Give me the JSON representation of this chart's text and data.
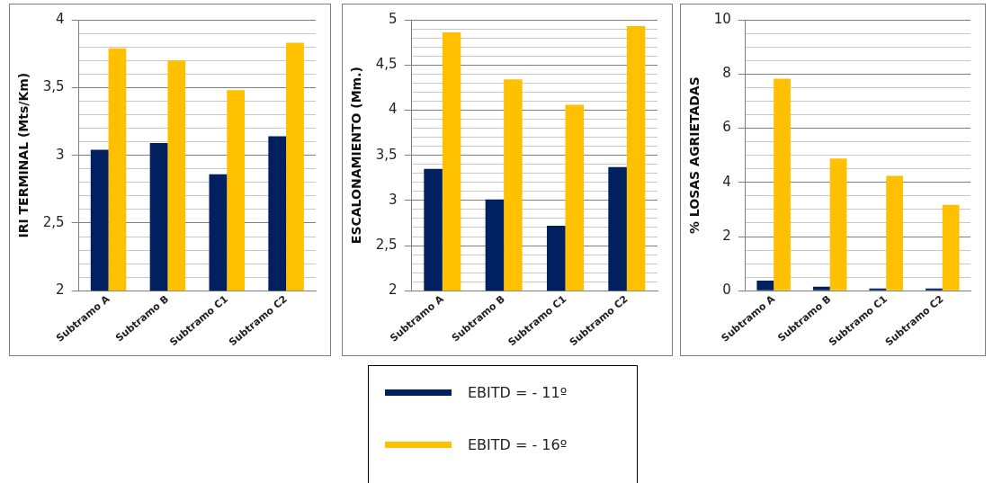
{
  "chart_data": [
    {
      "type": "bar",
      "ylabel": "IRI TERMINAL (Mts/Km)",
      "categories": [
        "Subtramo A",
        "Subtramo B",
        "Subtramo C1",
        "Subtramo C2"
      ],
      "series": [
        {
          "name": "EBITD = - 11º",
          "color": "#002060",
          "values": [
            3.04,
            3.09,
            2.86,
            3.14
          ]
        },
        {
          "name": "EBITD = - 16º",
          "color": "#ffc000",
          "values": [
            3.79,
            3.7,
            3.48,
            3.83
          ]
        }
      ],
      "ylim": [
        2,
        4
      ],
      "yticks": [
        2,
        {
          "value": 2.1,
          "label": null
        },
        {
          "value": 2.2,
          "label": null
        },
        {
          "value": 2.3,
          "label": null
        },
        {
          "value": 2.4,
          "label": null
        },
        {
          "value": 2.5,
          "label": "2,5"
        },
        {
          "value": 2.6,
          "label": null
        },
        {
          "value": 2.7,
          "label": null
        },
        {
          "value": 2.8,
          "label": null
        },
        {
          "value": 2.9,
          "label": null
        },
        3,
        {
          "value": 3.1,
          "label": null
        },
        {
          "value": 3.2,
          "label": null
        },
        {
          "value": 3.3,
          "label": null
        },
        {
          "value": 3.4,
          "label": null
        },
        {
          "value": 3.5,
          "label": "3,5"
        },
        {
          "value": 3.6,
          "label": null
        },
        {
          "value": 3.7,
          "label": null
        },
        {
          "value": 3.8,
          "label": null
        },
        {
          "value": 3.9,
          "label": null
        },
        4
      ],
      "grid": "y",
      "legend": "bottom"
    },
    {
      "type": "bar",
      "ylabel": "ESCALONAMIENTO (Mm.)",
      "categories": [
        "Subtramo A",
        "Subtramo B",
        "Subtramo C1",
        "Subtramo C2"
      ],
      "series": [
        {
          "color": "#002060",
          "values": [
            3.35,
            3.01,
            2.72,
            3.37
          ]
        },
        {
          "color": "#ffc000",
          "values": [
            4.86,
            4.34,
            4.06,
            4.93
          ]
        }
      ],
      "ylim": [
        2,
        5
      ],
      "yticks": [
        2,
        {
          "value": 2.1,
          "label": null
        },
        {
          "value": 2.2,
          "label": null
        },
        {
          "value": 2.3,
          "label": null
        },
        {
          "value": 2.4,
          "label": null
        },
        {
          "value": 2.5,
          "label": "2,5"
        },
        {
          "value": 2.6,
          "label": null
        },
        {
          "value": 2.7,
          "label": null
        },
        {
          "value": 2.8,
          "label": null
        },
        {
          "value": 2.9,
          "label": null
        },
        3,
        {
          "value": 3.1,
          "label": null
        },
        {
          "value": 3.2,
          "label": null
        },
        {
          "value": 3.3,
          "label": null
        },
        {
          "value": 3.4,
          "label": null
        },
        {
          "value": 3.5,
          "label": "3,5"
        },
        {
          "value": 3.6,
          "label": null
        },
        {
          "value": 3.7,
          "label": null
        },
        {
          "value": 3.8,
          "label": null
        },
        {
          "value": 3.9,
          "label": null
        },
        4,
        {
          "value": 4.1,
          "label": null
        },
        {
          "value": 4.2,
          "label": null
        },
        {
          "value": 4.3,
          "label": null
        },
        {
          "value": 4.4,
          "label": null
        },
        {
          "value": 4.5,
          "label": "4,5"
        },
        {
          "value": 4.6,
          "label": null
        },
        {
          "value": 4.7,
          "label": null
        },
        {
          "value": 4.8,
          "label": null
        },
        {
          "value": 4.9,
          "label": null
        },
        5
      ],
      "grid": "y"
    },
    {
      "type": "bar",
      "ylabel": "% LOSAS AGRIETADAS",
      "categories": [
        "Subtramo A",
        "Subtramo B",
        "Subtramo C1",
        "Subtramo C2"
      ],
      "series": [
        {
          "color": "#002060",
          "values": [
            0.37,
            0.15,
            0.08,
            0.08
          ]
        },
        {
          "color": "#ffc000",
          "values": [
            7.83,
            4.88,
            4.24,
            3.17
          ]
        }
      ],
      "ylim": [
        0,
        10
      ],
      "yticks": [
        0,
        {
          "value": 0.5,
          "label": null
        },
        {
          "value": 1,
          "label": null
        },
        {
          "value": 1.5,
          "label": null
        },
        2,
        {
          "value": 2.5,
          "label": null
        },
        {
          "value": 3,
          "label": null
        },
        {
          "value": 3.5,
          "label": null
        },
        4,
        {
          "value": 4.5,
          "label": null
        },
        {
          "value": 5,
          "label": null
        },
        {
          "value": 5.5,
          "label": null
        },
        6,
        {
          "value": 6.5,
          "label": null
        },
        {
          "value": 7,
          "label": null
        },
        {
          "value": 7.5,
          "label": null
        },
        8,
        {
          "value": 8.5,
          "label": null
        },
        {
          "value": 9,
          "label": null
        },
        {
          "value": 9.5,
          "label": null
        },
        10
      ],
      "grid": "y"
    }
  ]
}
